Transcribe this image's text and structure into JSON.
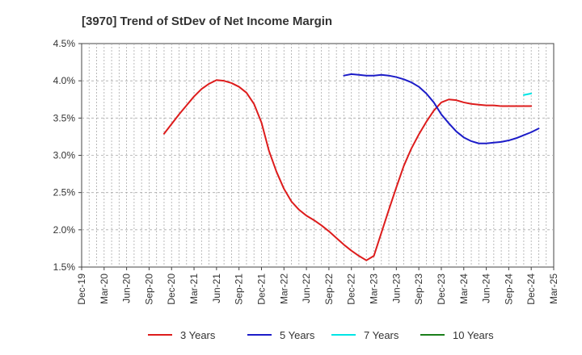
{
  "chart_data": {
    "type": "line",
    "title": "[3970]  Trend of StDev of Net Income Margin",
    "xlabel": "",
    "ylabel": "",
    "x_ticks": [
      "Dec-19",
      "Mar-20",
      "Jun-20",
      "Sep-20",
      "Dec-20",
      "Mar-21",
      "Jun-21",
      "Sep-21",
      "Dec-21",
      "Mar-22",
      "Jun-22",
      "Sep-22",
      "Dec-22",
      "Mar-23",
      "Jun-23",
      "Sep-23",
      "Dec-23",
      "Mar-24",
      "Jun-24",
      "Sep-24",
      "Dec-24",
      "Mar-25"
    ],
    "y_ticks": [
      "1.5%",
      "2.0%",
      "2.5%",
      "3.0%",
      "3.5%",
      "4.0%",
      "4.5%"
    ],
    "ylim": [
      1.5,
      4.5
    ],
    "grid": true,
    "legend_position": "bottom",
    "series": [
      {
        "name": "3 Years",
        "color": "#dd1c1c",
        "points": [
          [
            "2020-11",
            3.29
          ],
          [
            "2020-12",
            3.42
          ],
          [
            "2021-01",
            3.55
          ],
          [
            "2021-02",
            3.67
          ],
          [
            "2021-03",
            3.79
          ],
          [
            "2021-04",
            3.89
          ],
          [
            "2021-05",
            3.96
          ],
          [
            "2021-06",
            4.01
          ],
          [
            "2021-07",
            4.0
          ],
          [
            "2021-08",
            3.97
          ],
          [
            "2021-09",
            3.92
          ],
          [
            "2021-10",
            3.84
          ],
          [
            "2021-11",
            3.69
          ],
          [
            "2021-12",
            3.44
          ],
          [
            "2022-01",
            3.06
          ],
          [
            "2022-02",
            2.78
          ],
          [
            "2022-03",
            2.55
          ],
          [
            "2022-04",
            2.38
          ],
          [
            "2022-05",
            2.27
          ],
          [
            "2022-06",
            2.19
          ],
          [
            "2022-07",
            2.13
          ],
          [
            "2022-08",
            2.06
          ],
          [
            "2022-09",
            1.98
          ],
          [
            "2022-10",
            1.89
          ],
          [
            "2022-11",
            1.8
          ],
          [
            "2022-12",
            1.72
          ],
          [
            "2023-01",
            1.65
          ],
          [
            "2023-02",
            1.59
          ],
          [
            "2023-03",
            1.65
          ],
          [
            "2023-04",
            1.96
          ],
          [
            "2023-05",
            2.27
          ],
          [
            "2023-06",
            2.57
          ],
          [
            "2023-07",
            2.86
          ],
          [
            "2023-08",
            3.09
          ],
          [
            "2023-09",
            3.28
          ],
          [
            "2023-10",
            3.45
          ],
          [
            "2023-11",
            3.6
          ],
          [
            "2023-12",
            3.71
          ],
          [
            "2024-01",
            3.75
          ],
          [
            "2024-02",
            3.74
          ],
          [
            "2024-03",
            3.71
          ],
          [
            "2024-04",
            3.69
          ],
          [
            "2024-05",
            3.68
          ],
          [
            "2024-06",
            3.67
          ],
          [
            "2024-07",
            3.67
          ],
          [
            "2024-08",
            3.66
          ],
          [
            "2024-09",
            3.66
          ],
          [
            "2024-10",
            3.66
          ],
          [
            "2024-11",
            3.66
          ],
          [
            "2024-12",
            3.66
          ]
        ]
      },
      {
        "name": "5 Years",
        "color": "#1c1cc8",
        "points": [
          [
            "2022-11",
            4.07
          ],
          [
            "2022-12",
            4.09
          ],
          [
            "2023-01",
            4.08
          ],
          [
            "2023-02",
            4.07
          ],
          [
            "2023-03",
            4.07
          ],
          [
            "2023-04",
            4.08
          ],
          [
            "2023-05",
            4.07
          ],
          [
            "2023-06",
            4.05
          ],
          [
            "2023-07",
            4.02
          ],
          [
            "2023-08",
            3.98
          ],
          [
            "2023-09",
            3.92
          ],
          [
            "2023-10",
            3.83
          ],
          [
            "2023-11",
            3.71
          ],
          [
            "2023-12",
            3.55
          ],
          [
            "2024-01",
            3.43
          ],
          [
            "2024-02",
            3.32
          ],
          [
            "2024-03",
            3.24
          ],
          [
            "2024-04",
            3.19
          ],
          [
            "2024-05",
            3.16
          ],
          [
            "2024-06",
            3.16
          ],
          [
            "2024-07",
            3.17
          ],
          [
            "2024-08",
            3.18
          ],
          [
            "2024-09",
            3.2
          ],
          [
            "2024-10",
            3.23
          ],
          [
            "2024-11",
            3.27
          ],
          [
            "2024-12",
            3.31
          ],
          [
            "2025-01",
            3.36
          ]
        ]
      },
      {
        "name": "7 Years",
        "color": "#00e5e5",
        "points": [
          [
            "2024-11",
            3.81
          ],
          [
            "2024-12",
            3.83
          ]
        ]
      },
      {
        "name": "10 Years",
        "color": "#1a7f1a",
        "points": []
      }
    ]
  }
}
